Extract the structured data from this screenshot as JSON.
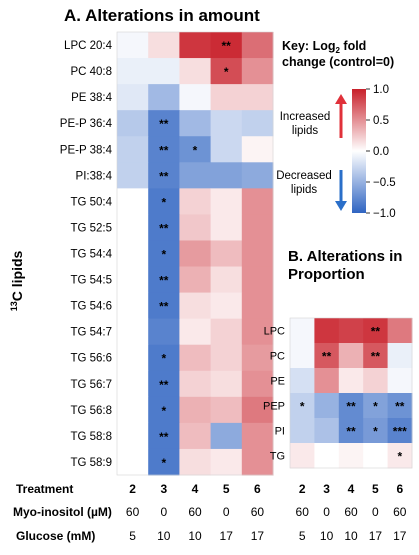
{
  "colors": {
    "strong_red": "#c8202a",
    "white": "#ffffff",
    "strong_blue": "#2f64c2",
    "increase_arrow": "#e0313a",
    "decrease_arrow": "#2a6fc9"
  },
  "chart_data": [
    {
      "type": "heatmap",
      "title": "A. Alterations in amount",
      "ylabel": "13C lipids",
      "ylabel_parts": {
        "super": "13",
        "base": "C lipids"
      },
      "rows": [
        "LPC 20:4",
        "PC 40:8",
        "PE 38:4",
        "PE-P 36:4",
        "PE-P 38:4",
        "PI:38:4",
        "TG 50:4",
        "TG 52:5",
        "TG 54:4",
        "TG 54:5",
        "TG 54:6",
        "TG 54:7",
        "TG 56:6",
        "TG 56:7",
        "TG 56:8",
        "TG 58:8",
        "TG 58:9"
      ],
      "columns": [
        "2",
        "3",
        "4",
        "5",
        "6"
      ],
      "values": [
        [
          -0.05,
          0.15,
          0.9,
          0.95,
          0.65
        ],
        [
          -0.1,
          -0.1,
          0.15,
          0.8,
          0.5
        ],
        [
          -0.15,
          -0.45,
          -0.05,
          0.2,
          0.2
        ],
        [
          -0.35,
          -0.8,
          -0.45,
          -0.25,
          -0.3
        ],
        [
          -0.3,
          -0.8,
          -0.7,
          -0.25,
          0.05
        ],
        [
          -0.3,
          -0.8,
          -0.6,
          -0.6,
          -0.55
        ],
        [
          0.0,
          -0.85,
          0.2,
          0.1,
          0.5
        ],
        [
          0.0,
          -0.85,
          0.25,
          0.1,
          0.5
        ],
        [
          0.0,
          -0.85,
          0.45,
          0.3,
          0.5
        ],
        [
          0.0,
          -0.85,
          0.35,
          0.15,
          0.5
        ],
        [
          0.0,
          -0.85,
          0.15,
          0.1,
          0.5
        ],
        [
          0.0,
          -0.8,
          0.1,
          0.2,
          0.5
        ],
        [
          0.0,
          -0.85,
          0.3,
          0.2,
          0.45
        ],
        [
          0.0,
          -0.85,
          0.2,
          0.15,
          0.5
        ],
        [
          0.0,
          -0.85,
          0.35,
          0.3,
          0.6
        ],
        [
          0.0,
          -0.85,
          0.3,
          -0.55,
          0.5
        ],
        [
          0.0,
          -0.85,
          0.15,
          0.1,
          0.5
        ]
      ],
      "annotations": [
        [
          "",
          "",
          "",
          "**",
          ""
        ],
        [
          "",
          "",
          "",
          "*",
          ""
        ],
        [
          "",
          "",
          "",
          "",
          ""
        ],
        [
          "",
          "**",
          "",
          "",
          ""
        ],
        [
          "",
          "**",
          "*",
          "",
          ""
        ],
        [
          "",
          "**",
          "",
          "",
          ""
        ],
        [
          "",
          "*",
          "",
          "",
          ""
        ],
        [
          "",
          "**",
          "",
          "",
          ""
        ],
        [
          "",
          "*",
          "",
          "",
          ""
        ],
        [
          "",
          "**",
          "",
          "",
          ""
        ],
        [
          "",
          "**",
          "",
          "",
          ""
        ],
        [
          "",
          "",
          "",
          "",
          ""
        ],
        [
          "",
          "*",
          "",
          "",
          ""
        ],
        [
          "",
          "**",
          "",
          "",
          ""
        ],
        [
          "",
          "*",
          "",
          "",
          ""
        ],
        [
          "",
          "**",
          "",
          "",
          ""
        ],
        [
          "",
          "*",
          "",
          "",
          ""
        ]
      ],
      "treatment_label": "Treatment",
      "myo_label": "Myo-inositol (µM)",
      "myo_values": [
        "60",
        "0",
        "60",
        "0",
        "60"
      ],
      "glucose_label": "Glucose (mM)",
      "glucose_values": [
        "5",
        "10",
        "10",
        "17",
        "17"
      ]
    },
    {
      "type": "heatmap",
      "title_line1": "B. Alterations in",
      "title_line2": "Proportion",
      "rows": [
        "LPC",
        "PC",
        "PE",
        "PEP",
        "PI",
        "TG"
      ],
      "columns": [
        "2",
        "3",
        "4",
        "5",
        "6"
      ],
      "values": [
        [
          -0.05,
          0.9,
          0.85,
          0.9,
          0.6
        ],
        [
          -0.05,
          0.75,
          0.35,
          0.75,
          -0.1
        ],
        [
          -0.2,
          0.5,
          0.1,
          0.2,
          -0.05
        ],
        [
          -0.3,
          -0.5,
          -0.75,
          -0.6,
          -0.7
        ],
        [
          -0.3,
          -0.4,
          -0.75,
          -0.65,
          -0.8
        ],
        [
          0.1,
          0.0,
          0.05,
          0.0,
          0.1
        ]
      ],
      "annotations": [
        [
          "",
          "",
          "",
          "**",
          ""
        ],
        [
          "",
          "**",
          "",
          "**",
          ""
        ],
        [
          "",
          "",
          "",
          "",
          ""
        ],
        [
          "*",
          "",
          "**",
          "*",
          "**"
        ],
        [
          "",
          "",
          "**",
          "*",
          "***"
        ],
        [
          "",
          "",
          "",
          "",
          "*"
        ]
      ],
      "myo_values": [
        "60",
        "0",
        "60",
        "0",
        "60"
      ],
      "glucose_values": [
        "5",
        "10",
        "10",
        "17",
        "17"
      ]
    }
  ],
  "key": {
    "line1": "Key: Log",
    "sub": "2",
    "line1_end": " fold",
    "line2": "change (control=0)",
    "increased_line1": "Increased",
    "increased_line2": "lipids",
    "decreased_line1": "Decreased",
    "decreased_line2": "lipids"
  },
  "colorbar": {
    "range": [
      -1.0,
      1.0
    ],
    "ticks": [
      "1.0",
      "0.5",
      "0.0",
      "−0.5",
      "−1.0"
    ],
    "tick_values": [
      1.0,
      0.5,
      0.0,
      -0.5,
      -1.0
    ]
  }
}
